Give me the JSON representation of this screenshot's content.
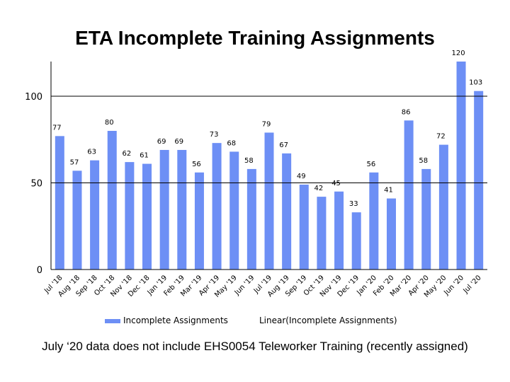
{
  "chart_data": {
    "type": "bar",
    "title": "ETA Incomplete Training Assignments",
    "categories": [
      "Jul '18",
      "Aug '18",
      "Sep '18",
      "Oct '18",
      "Nov '18",
      "Dec '18",
      "Jan '19",
      "Feb '19",
      "Mar '19",
      "Apr '19",
      "May '19",
      "Jun '19",
      "Jul '19",
      "Aug '19",
      "Sep '19",
      "Oct '19",
      "Nov '19",
      "Dec '19",
      "Jan '20",
      "Feb '20",
      "Mar '20",
      "Apr '20",
      "May '20",
      "Jun '20",
      "Jul '20"
    ],
    "series": [
      {
        "name": "Incomplete Assignments",
        "values": [
          77,
          57,
          63,
          80,
          62,
          61,
          69,
          69,
          56,
          73,
          68,
          58,
          79,
          67,
          49,
          42,
          45,
          33,
          56,
          41,
          86,
          58,
          72,
          120,
          103
        ],
        "color": "#6d8ff5"
      }
    ],
    "trendline_legend": "Linear(Incomplete Assignments)",
    "y_ticks": [
      0,
      50,
      100
    ],
    "ylim": [
      0,
      120
    ],
    "grid": false,
    "legend_position": "bottom"
  },
  "footnote": "July ‘20 data does not include EHS0054 Teleworker Training (recently assigned)"
}
